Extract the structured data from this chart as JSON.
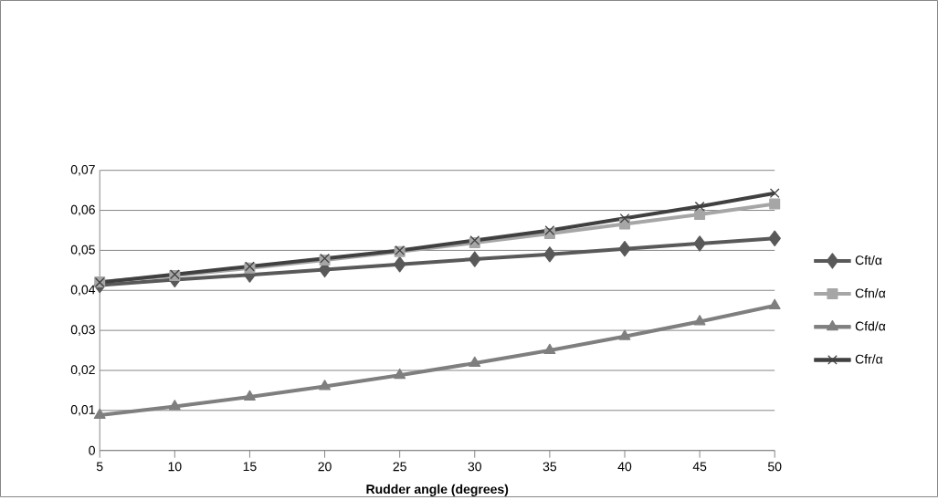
{
  "chart_data": {
    "type": "line",
    "xlabel": "Rudder angle (degrees)",
    "categories": [
      "5",
      "10",
      "15",
      "20",
      "25",
      "30",
      "35",
      "40",
      "45",
      "50"
    ],
    "series": [
      {
        "name": "Cft/α",
        "color": "#595959",
        "marker": "diamond",
        "values": [
          0.0413,
          0.0427,
          0.0439,
          0.0452,
          0.0465,
          0.0478,
          0.049,
          0.0504,
          0.0517,
          0.053
        ]
      },
      {
        "name": "Cfn/α",
        "color": "#a6a6a6",
        "marker": "square",
        "values": [
          0.0421,
          0.0437,
          0.0456,
          0.0476,
          0.0497,
          0.0519,
          0.0542,
          0.0566,
          0.059,
          0.0616
        ]
      },
      {
        "name": "Cfd/α",
        "color": "#7f7f7f",
        "marker": "triangle",
        "values": [
          0.0088,
          0.011,
          0.0134,
          0.016,
          0.0188,
          0.0218,
          0.025,
          0.0285,
          0.0322,
          0.0362
        ]
      },
      {
        "name": "Cfr/α",
        "color": "#404040",
        "marker": "cross",
        "values": [
          0.042,
          0.044,
          0.046,
          0.048,
          0.05,
          0.0525,
          0.055,
          0.058,
          0.061,
          0.0643
        ]
      }
    ],
    "ylim": [
      0,
      0.07
    ],
    "yticks": [
      0,
      {
        "value": 0.01,
        "label": "0,01"
      },
      {
        "value": 0.02,
        "label": "0,02"
      },
      {
        "value": 0.03,
        "label": "0,03"
      },
      {
        "value": 0.04,
        "label": "0,04"
      },
      {
        "value": 0.05,
        "label": "0,05"
      },
      {
        "value": 0.06,
        "label": "0,06"
      },
      {
        "value": 0.07,
        "label": "0,07"
      }
    ],
    "grid": "y",
    "legend": "right",
    "line_style": "solid"
  }
}
